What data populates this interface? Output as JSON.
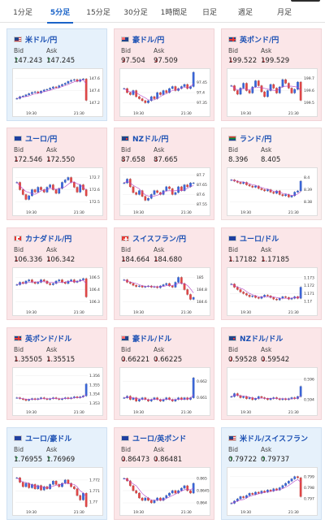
{
  "tabs": [
    "1分足",
    "5分足",
    "15分足",
    "30分足",
    "1時間足",
    "日足",
    "週足",
    "月足"
  ],
  "active_tab": 1,
  "labels": {
    "bid": "Bid",
    "ask": "Ask"
  },
  "cards": [
    {
      "pair": "米ドル/円",
      "flag": "us",
      "dir": "up",
      "bid": "147.243",
      "ask": "147.245",
      "chart_data": {
        "type": "candlestick",
        "yticks": [
          "147.6",
          "147.4",
          "147.2"
        ],
        "ylim": [
          147.1,
          147.7
        ],
        "xticks": [
          "19:30",
          "21:30"
        ],
        "close": [
          147.27,
          147.3,
          147.31,
          147.33,
          147.35,
          147.37,
          147.38,
          147.36,
          147.39,
          147.41,
          147.42,
          147.44,
          147.46,
          147.45,
          147.48,
          147.5,
          147.52,
          147.55,
          147.57,
          147.58,
          147.55,
          147.58,
          147.59,
          147.24
        ]
      }
    },
    {
      "pair": "豪ドル/円",
      "flag": "au",
      "dir": "down",
      "bid": "97.504",
      "ask": "97.509",
      "chart_data": {
        "type": "candlestick",
        "yticks": [
          "97.45",
          "97.4",
          "97.35"
        ],
        "ylim": [
          97.32,
          97.5
        ],
        "xticks": [
          "19:30",
          "21:30"
        ],
        "close": [
          97.42,
          97.4,
          97.39,
          97.41,
          97.38,
          97.37,
          97.36,
          97.35,
          97.36,
          97.38,
          97.37,
          97.4,
          97.39,
          97.41,
          97.4,
          97.42,
          97.43,
          97.41,
          97.42,
          97.43,
          97.44,
          97.42,
          97.43,
          97.5
        ]
      }
    },
    {
      "pair": "英ポンド/円",
      "flag": "gb",
      "dir": "down",
      "bid": "199.522",
      "ask": "199.529",
      "chart_data": {
        "type": "candlestick",
        "yticks": [
          "199.7",
          "199.6",
          "199.5"
        ],
        "ylim": [
          199.45,
          199.75
        ],
        "xticks": [
          "19:30",
          "21:30"
        ],
        "close": [
          199.64,
          199.6,
          199.57,
          199.62,
          199.66,
          199.6,
          199.58,
          199.63,
          199.68,
          199.64,
          199.59,
          199.55,
          199.6,
          199.65,
          199.62,
          199.58,
          199.63,
          199.69,
          199.66,
          199.62,
          199.58,
          199.61,
          199.67,
          199.52
        ]
      }
    },
    {
      "pair": "ユーロ/円",
      "flag": "eu",
      "dir": "down",
      "bid": "172.546",
      "ask": "172.550",
      "chart_data": {
        "type": "candlestick",
        "yticks": [
          "172.7",
          "172.6",
          "172.5"
        ],
        "ylim": [
          172.45,
          172.75
        ],
        "xticks": [
          "19:30",
          "21:30"
        ],
        "close": [
          172.66,
          172.6,
          172.56,
          172.52,
          172.55,
          172.6,
          172.58,
          172.62,
          172.6,
          172.58,
          172.62,
          172.64,
          172.6,
          172.57,
          172.61,
          172.66,
          172.68,
          172.7,
          172.66,
          172.62,
          172.58,
          172.64,
          172.6,
          172.55
        ]
      }
    },
    {
      "pair": "NZドル/円",
      "flag": "nz",
      "dir": "down",
      "bid": "87.658",
      "ask": "87.665",
      "chart_data": {
        "type": "candlestick",
        "yticks": [
          "87.7",
          "87.65",
          "87.6",
          "87.55"
        ],
        "ylim": [
          87.53,
          87.72
        ],
        "xticks": [
          "19:30",
          "21:30"
        ],
        "close": [
          87.66,
          87.68,
          87.64,
          87.61,
          87.6,
          87.62,
          87.59,
          87.57,
          87.58,
          87.6,
          87.62,
          87.61,
          87.6,
          87.62,
          87.64,
          87.63,
          87.6,
          87.61,
          87.64,
          87.62,
          87.65,
          87.64,
          87.66,
          87.66
        ]
      }
    },
    {
      "pair": "ランド/円",
      "flag": "za",
      "dir": "flat",
      "bid": "8.396",
      "ask": "8.405",
      "chart_data": {
        "type": "candlestick",
        "yticks": [
          "8.4",
          "8.39",
          "8.38"
        ],
        "ylim": [
          8.375,
          8.405
        ],
        "xticks": [
          "19:30",
          "21:30"
        ],
        "close": [
          8.398,
          8.397,
          8.396,
          8.395,
          8.396,
          8.394,
          8.393,
          8.392,
          8.393,
          8.391,
          8.39,
          8.389,
          8.39,
          8.388,
          8.387,
          8.389,
          8.386,
          8.385,
          8.386,
          8.384,
          8.385,
          8.388,
          8.389,
          8.397
        ]
      }
    },
    {
      "pair": "カナダドル/円",
      "flag": "ca",
      "dir": "down",
      "bid": "106.336",
      "ask": "106.342",
      "chart_data": {
        "type": "candlestick",
        "yticks": [
          "106.5",
          "106.4",
          "106.3"
        ],
        "ylim": [
          106.25,
          106.55
        ],
        "xticks": [
          "19:30",
          "21:30"
        ],
        "close": [
          106.44,
          106.46,
          106.45,
          106.47,
          106.48,
          106.46,
          106.45,
          106.46,
          106.48,
          106.47,
          106.45,
          106.44,
          106.45,
          106.47,
          106.48,
          106.46,
          106.45,
          106.47,
          106.48,
          106.46,
          106.47,
          106.48,
          106.49,
          106.34
        ]
      }
    },
    {
      "pair": "スイスフラン/円",
      "flag": "ch",
      "dir": "down",
      "bid": "184.664",
      "ask": "184.680",
      "chart_data": {
        "type": "candlestick",
        "yticks": [
          "185",
          "184.8",
          "184.6"
        ],
        "ylim": [
          184.5,
          185.1
        ],
        "xticks": [
          "19:30",
          "21:30"
        ],
        "close": [
          184.96,
          184.92,
          184.9,
          184.87,
          184.85,
          184.86,
          184.84,
          184.85,
          184.86,
          184.84,
          184.85,
          184.83,
          184.86,
          184.88,
          184.9,
          184.86,
          184.84,
          184.92,
          185.0,
          184.9,
          184.8,
          184.72,
          184.64,
          184.67
        ]
      }
    },
    {
      "pair": "ユーロ/ドル",
      "flag": "eu",
      "dir": "down",
      "bid": "1.17182",
      "ask": "1.17185",
      "chart_data": {
        "type": "candlestick",
        "yticks": [
          "1.173",
          "1.172",
          "1.171",
          "1.17"
        ],
        "ylim": [
          1.1692,
          1.1738
        ],
        "xticks": [
          "19:30",
          "21:30"
        ],
        "close": [
          1.1722,
          1.1718,
          1.1715,
          1.1712,
          1.171,
          1.1708,
          1.1706,
          1.1707,
          1.1705,
          1.1704,
          1.1706,
          1.1708,
          1.1707,
          1.1705,
          1.1703,
          1.1702,
          1.1704,
          1.1706,
          1.1705,
          1.1703,
          1.1704,
          1.1706,
          1.1704,
          1.1718
        ]
      }
    },
    {
      "pair": "英ポンド/ドル",
      "flag": "gb",
      "dir": "down",
      "bid": "1.35505",
      "ask": "1.35515",
      "chart_data": {
        "type": "candlestick",
        "yticks": [
          "1.356",
          "1.355",
          "1.354",
          "1.353"
        ],
        "ylim": [
          1.3525,
          1.3565
        ],
        "xticks": [
          "19:30",
          "21:30"
        ],
        "close": [
          1.3536,
          1.3535,
          1.3534,
          1.3533,
          1.3534,
          1.3535,
          1.3534,
          1.3535,
          1.3536,
          1.3535,
          1.3534,
          1.3535,
          1.3536,
          1.3535,
          1.3534,
          1.3535,
          1.3536,
          1.3535,
          1.3536,
          1.3537,
          1.3536,
          1.3537,
          1.3538,
          1.3551
        ]
      }
    },
    {
      "pair": "豪ドル/ドル",
      "flag": "au",
      "dir": "down",
      "bid": "0.66221",
      "ask": "0.66225",
      "chart_data": {
        "type": "candlestick",
        "yticks": [
          "0.662",
          "0.661"
        ],
        "ylim": [
          0.6604,
          0.6626
        ],
        "xticks": [
          "19:30",
          "21:30"
        ],
        "close": [
          0.661,
          0.6611,
          0.6609,
          0.661,
          0.6608,
          0.6609,
          0.661,
          0.6609,
          0.6608,
          0.6609,
          0.661,
          0.6609,
          0.6608,
          0.6609,
          0.661,
          0.6609,
          0.6608,
          0.6609,
          0.661,
          0.6609,
          0.661,
          0.6609,
          0.661,
          0.6622
        ]
      }
    },
    {
      "pair": "NZドル/ドル",
      "flag": "nz",
      "dir": "down",
      "bid": "0.59528",
      "ask": "0.59542",
      "chart_data": {
        "type": "candlestick",
        "yticks": [
          "0.596",
          "0.594"
        ],
        "ylim": [
          0.5932,
          0.5968
        ],
        "xticks": [
          "19:30",
          "21:30"
        ],
        "close": [
          0.5943,
          0.5946,
          0.5944,
          0.5942,
          0.5943,
          0.5941,
          0.5942,
          0.594,
          0.5941,
          0.5943,
          0.5942,
          0.5941,
          0.594,
          0.5941,
          0.5942,
          0.5941,
          0.594,
          0.5941,
          0.594,
          0.5941,
          0.5942,
          0.5941,
          0.5943,
          0.5953
        ]
      }
    },
    {
      "pair": "ユーロ/豪ドル",
      "flag": "eu",
      "dir": "up",
      "bid": "1.76955",
      "ask": "1.76969",
      "chart_data": {
        "type": "candlestick",
        "yticks": [
          "1.772",
          "1.771",
          "1.77"
        ],
        "ylim": [
          1.7695,
          1.7728
        ],
        "xticks": [
          "19:30",
          "21:30"
        ],
        "close": [
          1.7722,
          1.7718,
          1.7714,
          1.7717,
          1.7713,
          1.7716,
          1.7712,
          1.7715,
          1.7711,
          1.7714,
          1.7712,
          1.7716,
          1.7719,
          1.7716,
          1.7714,
          1.7717,
          1.772,
          1.7717,
          1.7714,
          1.7712,
          1.7706,
          1.7702,
          1.7708,
          1.7696
        ]
      }
    },
    {
      "pair": "ユーロ/英ポンド",
      "flag": "eu",
      "dir": "down",
      "bid": "0.86473",
      "ask": "0.86481",
      "chart_data": {
        "type": "candlestick",
        "yticks": [
          "0.865",
          "0.8645",
          "0.864"
        ],
        "ylim": [
          0.8638,
          0.8653
        ],
        "xticks": [
          "19:30",
          "21:30"
        ],
        "close": [
          0.865,
          0.8649,
          0.8647,
          0.8645,
          0.8644,
          0.8642,
          0.8641,
          0.8642,
          0.8641,
          0.864,
          0.8641,
          0.8642,
          0.8641,
          0.8642,
          0.8643,
          0.8644,
          0.8645,
          0.8644,
          0.8645,
          0.8646,
          0.8647,
          0.8645,
          0.8644,
          0.8648
        ]
      }
    },
    {
      "pair": "米ドル/スイスフラン",
      "flag": "us",
      "dir": "up",
      "bid": "0.79722",
      "ask": "0.79737",
      "chart_data": {
        "type": "candlestick",
        "yticks": [
          "0.799",
          "0.798",
          "0.797"
        ],
        "ylim": [
          0.7962,
          0.7995
        ],
        "xticks": [
          "19:30",
          "21:30"
        ],
        "close": [
          0.7966,
          0.7968,
          0.797,
          0.7972,
          0.7971,
          0.7973,
          0.7975,
          0.7974,
          0.7976,
          0.7975,
          0.7977,
          0.7976,
          0.7978,
          0.7977,
          0.7979,
          0.7978,
          0.798,
          0.7982,
          0.7984,
          0.7986,
          0.7988,
          0.799,
          0.7989,
          0.7972
        ]
      }
    }
  ]
}
